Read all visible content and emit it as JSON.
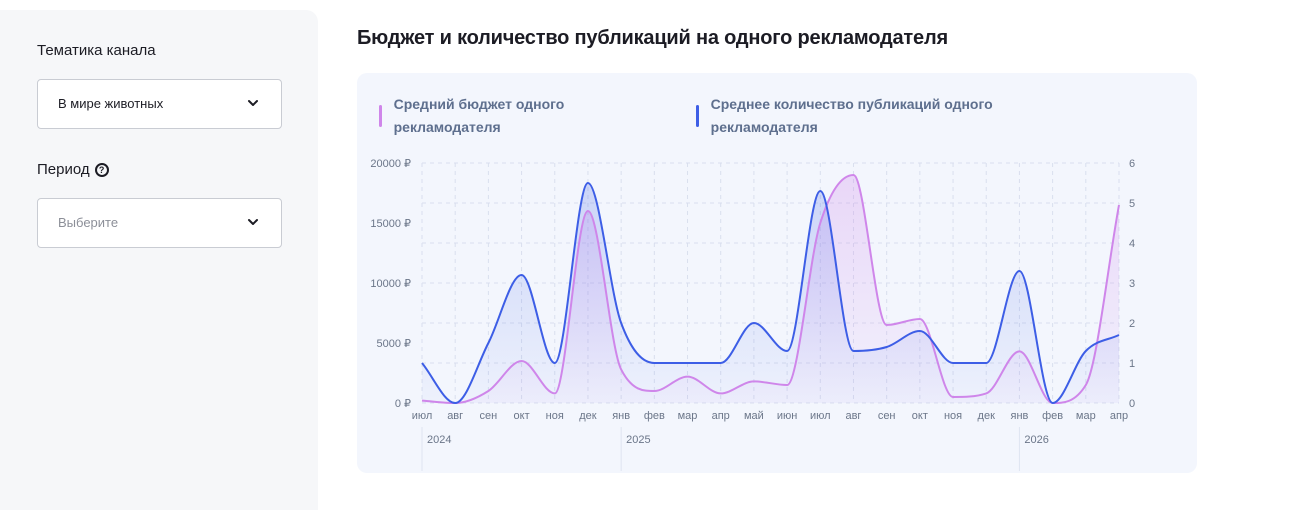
{
  "filters": {
    "topic_label": "Тематика канала",
    "topic_value": "В мире животных",
    "period_label": "Период",
    "period_help_icon": "question-circle-icon",
    "period_placeholder": "Выберите",
    "dropdown_icon": "chevron-down-icon"
  },
  "title": "Бюджет и количество публикаций на одного рекламодателя",
  "legend": {
    "budget": "Средний бюджет одного рекламодателя",
    "posts": "Среднее количество публикаций одного рекламодателя"
  },
  "colors": {
    "budget": "#cf86ea",
    "posts": "#3d5ee6",
    "card_bg": "#f3f6fd",
    "grid": "#d9dfee"
  },
  "chart_data": {
    "type": "line",
    "x": [
      "июл",
      "авг",
      "сен",
      "окт",
      "ноя",
      "дек",
      "янв",
      "фев",
      "мар",
      "апр",
      "май",
      "июн",
      "июл",
      "авг",
      "сен",
      "окт",
      "ноя",
      "дек",
      "янв",
      "фев",
      "мар",
      "апр"
    ],
    "year_labels": [
      {
        "label": "2024",
        "index": 0
      },
      {
        "label": "2025",
        "index": 6
      },
      {
        "label": "2026",
        "index": 18
      }
    ],
    "y_left": {
      "ticks": [
        "0 ₽",
        "5000 ₽",
        "10000 ₽",
        "15000 ₽",
        "20000 ₽"
      ],
      "range": [
        0,
        20000
      ]
    },
    "y_right": {
      "ticks": [
        "0",
        "1",
        "2",
        "3",
        "4",
        "5",
        "6"
      ],
      "range": [
        0,
        6
      ]
    },
    "grid": true,
    "series": [
      {
        "name": "Средний бюджет одного рекламодателя",
        "axis": "left",
        "values": [
          200,
          0,
          1000,
          3500,
          800,
          16000,
          2800,
          1000,
          2200,
          800,
          1800,
          1500,
          15000,
          19000,
          6500,
          7000,
          500,
          800,
          4300,
          0,
          1500,
          16500
        ]
      },
      {
        "name": "Среднее количество публикаций одного рекламодателя",
        "axis": "right",
        "values": [
          1,
          0,
          1.5,
          3.2,
          1,
          5.5,
          2,
          1,
          1,
          1,
          2,
          1.3,
          5.3,
          1.3,
          1.4,
          1.8,
          1,
          1,
          3.3,
          0,
          1.3,
          1.7
        ]
      }
    ]
  }
}
